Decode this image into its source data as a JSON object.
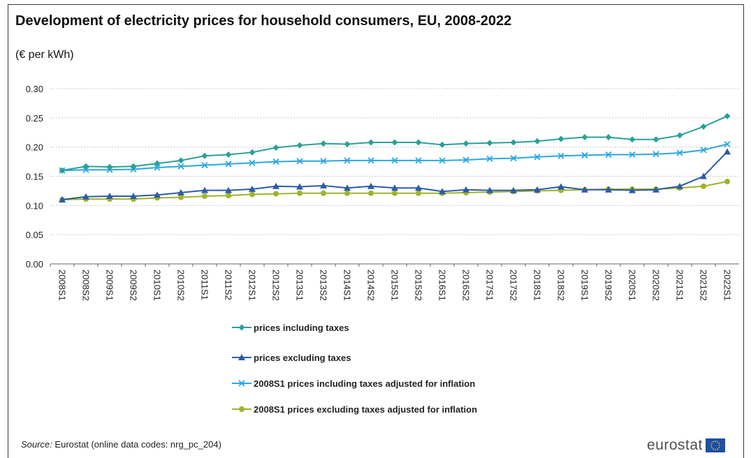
{
  "chart_data": {
    "type": "line",
    "title": "Development of electricity prices for household consumers, EU, 2008-2022",
    "ylabel": "(€ per kWh)",
    "ylim": [
      0,
      0.3
    ],
    "yticks": [
      "0.00",
      "0.05",
      "0.10",
      "0.15",
      "0.20",
      "0.25",
      "0.30"
    ],
    "ytick_values": [
      0,
      0.05,
      0.1,
      0.15,
      0.2,
      0.25,
      0.3
    ],
    "grid": "horizontal dashed",
    "legend_position": "bottom",
    "categories": [
      "2008S1",
      "2008S2",
      "2009S1",
      "2009S2",
      "2010S1",
      "2010S2",
      "2011S1",
      "2011S2",
      "2012S1",
      "2012S2",
      "2013S1",
      "2013S2",
      "2014S1",
      "2014S2",
      "2015S1",
      "2015S2",
      "2016S1",
      "2016S2",
      "2017S1",
      "2017S2",
      "2018S1",
      "2018S2",
      "2019S1",
      "2019S2",
      "2020S1",
      "2020S2",
      "2021S1",
      "2021S2",
      "2022S1"
    ],
    "series": [
      {
        "name": "prices including taxes",
        "color": "#2aa198",
        "marker": "diamond",
        "values": [
          0.16,
          0.167,
          0.166,
          0.167,
          0.172,
          0.177,
          0.185,
          0.187,
          0.191,
          0.199,
          0.203,
          0.206,
          0.205,
          0.208,
          0.208,
          0.208,
          0.204,
          0.206,
          0.207,
          0.208,
          0.21,
          0.214,
          0.217,
          0.217,
          0.213,
          0.213,
          0.22,
          0.235,
          0.253
        ]
      },
      {
        "name": "prices excluding taxes",
        "color": "#2e5aa8",
        "marker": "triangle",
        "values": [
          0.11,
          0.115,
          0.116,
          0.116,
          0.118,
          0.122,
          0.126,
          0.126,
          0.128,
          0.133,
          0.132,
          0.134,
          0.13,
          0.133,
          0.13,
          0.13,
          0.124,
          0.127,
          0.126,
          0.126,
          0.127,
          0.132,
          0.127,
          0.127,
          0.126,
          0.127,
          0.133,
          0.15,
          0.192
        ]
      },
      {
        "name": "2008S1 prices including taxes adjusted for inflation",
        "color": "#29a8e0",
        "marker": "x",
        "values": [
          0.16,
          0.161,
          0.161,
          0.162,
          0.165,
          0.167,
          0.169,
          0.171,
          0.173,
          0.175,
          0.176,
          0.176,
          0.177,
          0.177,
          0.177,
          0.177,
          0.177,
          0.178,
          0.18,
          0.181,
          0.183,
          0.185,
          0.186,
          0.187,
          0.187,
          0.188,
          0.19,
          0.195,
          0.205
        ]
      },
      {
        "name": "2008S1 prices excluding taxes adjusted for inflation",
        "color": "#9fb52a",
        "marker": "circle",
        "values": [
          0.11,
          0.111,
          0.111,
          0.111,
          0.113,
          0.114,
          0.116,
          0.117,
          0.119,
          0.12,
          0.121,
          0.121,
          0.121,
          0.121,
          0.121,
          0.121,
          0.121,
          0.122,
          0.123,
          0.124,
          0.125,
          0.126,
          0.127,
          0.128,
          0.128,
          0.128,
          0.13,
          0.133,
          0.141
        ]
      }
    ]
  },
  "footer": {
    "source_label": "Source:",
    "source_text": " Eurostat (online data codes: nrg_pc_204)",
    "logo_text": "eurostat"
  }
}
